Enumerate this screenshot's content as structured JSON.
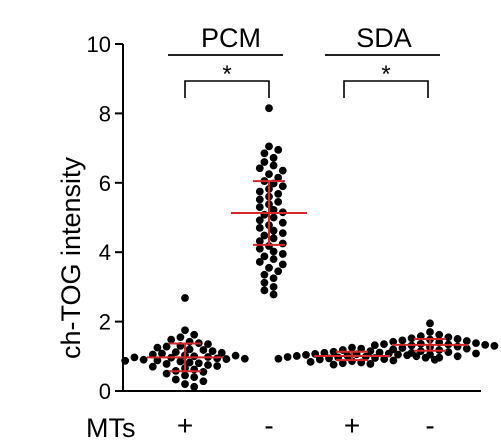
{
  "chart_data": {
    "type": "scatter",
    "subtype": "dot-plot with mean and SD",
    "ylabel": "ch-TOG  intensity",
    "ylim": [
      0,
      10
    ],
    "yticks": [
      "0",
      "2",
      "4",
      "6",
      "8",
      "10"
    ],
    "row_label": "MTs",
    "groups": [
      {
        "label": "PCM",
        "significance": "*",
        "columns": [
          0,
          1
        ]
      },
      {
        "label": "SDA",
        "significance": "*",
        "columns": [
          2,
          3
        ]
      }
    ],
    "columns": [
      {
        "mts": "+",
        "mean": 0.97,
        "sd": 0.4,
        "points": [
          2.68,
          1.75,
          1.62,
          1.55,
          1.48,
          1.42,
          1.38,
          1.35,
          1.3,
          1.28,
          1.25,
          1.2,
          1.18,
          1.15,
          1.12,
          1.1,
          1.08,
          1.05,
          1.03,
          1.0,
          0.98,
          0.96,
          0.94,
          0.92,
          0.9,
          0.88,
          0.85,
          0.82,
          0.8,
          0.78,
          0.75,
          0.72,
          0.7,
          0.66,
          0.62,
          0.58,
          0.55,
          0.5,
          0.45,
          0.4,
          0.33,
          0.28,
          0.2,
          0.12,
          1.02,
          0.97,
          0.93,
          0.87
        ]
      },
      {
        "mts": "-",
        "mean": 5.13,
        "sd": 0.92,
        "points": [
          8.15,
          7.05,
          6.95,
          6.85,
          6.72,
          6.6,
          6.5,
          6.42,
          6.35,
          6.25,
          6.15,
          6.05,
          5.98,
          5.9,
          5.82,
          5.75,
          5.68,
          5.6,
          5.52,
          5.45,
          5.38,
          5.3,
          5.22,
          5.15,
          5.08,
          5.0,
          4.92,
          4.85,
          4.78,
          4.7,
          4.62,
          4.55,
          4.48,
          4.4,
          4.32,
          4.25,
          4.18,
          4.1,
          4.02,
          3.95,
          3.88,
          3.8,
          3.72,
          3.65,
          3.55,
          3.45,
          3.35,
          3.25,
          3.12,
          3.0,
          2.9,
          2.78
        ]
      },
      {
        "mts": "+",
        "mean": 1.01,
        "sd": 0.12,
        "points": [
          1.25,
          1.22,
          1.18,
          1.15,
          1.13,
          1.11,
          1.1,
          1.08,
          1.07,
          1.06,
          1.05,
          1.04,
          1.03,
          1.02,
          1.01,
          1.0,
          0.99,
          0.98,
          0.97,
          0.96,
          0.95,
          0.94,
          0.93,
          0.92,
          0.91,
          0.9,
          0.88,
          0.86,
          0.84,
          0.82,
          0.8,
          0.78,
          0.76
        ]
      },
      {
        "mts": "-",
        "mean": 1.33,
        "sd": 0.17,
        "points": [
          1.95,
          1.7,
          1.62,
          1.58,
          1.55,
          1.52,
          1.5,
          1.48,
          1.46,
          1.44,
          1.42,
          1.4,
          1.38,
          1.36,
          1.35,
          1.34,
          1.33,
          1.32,
          1.31,
          1.3,
          1.28,
          1.26,
          1.24,
          1.22,
          1.2,
          1.18,
          1.15,
          1.12,
          1.1,
          1.08,
          1.05,
          1.0,
          0.96
        ]
      }
    ],
    "colors": {
      "points": "#000000",
      "mean_sd": "#d62728",
      "axes": "#000000"
    },
    "grid": false,
    "legend": "none"
  }
}
